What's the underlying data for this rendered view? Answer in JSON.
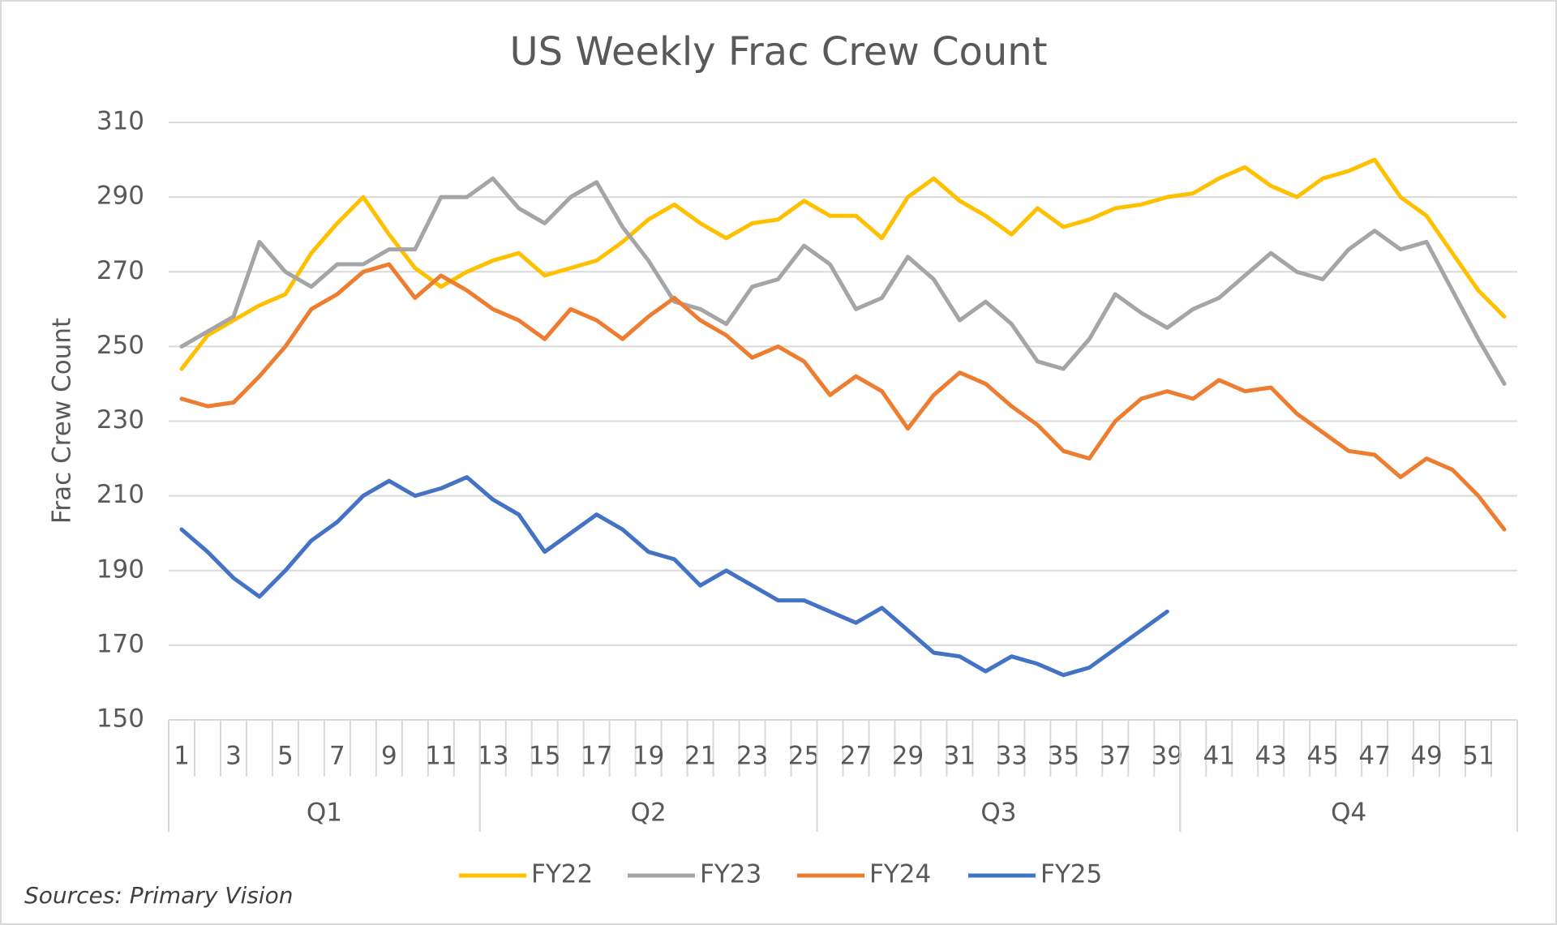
{
  "chart_data": {
    "type": "line",
    "title": "US Weekly Frac Crew Count",
    "y_label": "Frac Crew Count",
    "source": "Sources: Primary Vision",
    "categories": [
      "1",
      null,
      "3",
      null,
      "5",
      null,
      "7",
      null,
      "9",
      null,
      "11",
      null,
      "13",
      null,
      "15",
      null,
      "17",
      null,
      "19",
      null,
      "21",
      null,
      "23",
      null,
      "25",
      null,
      "27",
      null,
      "29",
      null,
      "31",
      null,
      "33",
      null,
      "35",
      null,
      "37",
      null,
      "39",
      null,
      "41",
      null,
      "43",
      null,
      "45",
      null,
      "47",
      null,
      "49",
      null,
      "51",
      null
    ],
    "groups": [
      {
        "name": "Q1",
        "start": 1,
        "end": 12
      },
      {
        "name": "Q2",
        "start": 13,
        "end": 25
      },
      {
        "name": "Q3",
        "start": 26,
        "end": 39
      },
      {
        "name": "Q4",
        "start": 40,
        "end": 52
      }
    ],
    "ylim": [
      150,
      310
    ],
    "yticks": [
      150,
      170,
      190,
      210,
      230,
      250,
      270,
      290,
      310
    ],
    "grid": true,
    "legend": "bottom",
    "series": [
      {
        "name": "FY22",
        "color": "#ffc000",
        "values": [
          244,
          253,
          257,
          261,
          264,
          275,
          283,
          290,
          280,
          271,
          266,
          270,
          273,
          275,
          269,
          271,
          273,
          278,
          284,
          288,
          283,
          279,
          283,
          284,
          289,
          285,
          285,
          279,
          290,
          295,
          289,
          285,
          280,
          287,
          282,
          284,
          287,
          288,
          290,
          291,
          295,
          298,
          293,
          290,
          295,
          297,
          300,
          290,
          285,
          275,
          265,
          258
        ]
      },
      {
        "name": "FY23",
        "color": "#a5a5a5",
        "values": [
          250,
          254,
          258,
          278,
          270,
          266,
          272,
          272,
          276,
          276,
          290,
          290,
          295,
          287,
          283,
          290,
          294,
          282,
          273,
          262,
          260,
          256,
          266,
          268,
          277,
          272,
          260,
          263,
          274,
          268,
          257,
          262,
          256,
          246,
          244,
          252,
          264,
          259,
          255,
          260,
          263,
          269,
          275,
          270,
          268,
          276,
          281,
          276,
          278,
          265,
          252,
          240
        ]
      },
      {
        "name": "FY24",
        "color": "#ed7d31",
        "values": [
          236,
          234,
          235,
          242,
          250,
          260,
          264,
          270,
          272,
          263,
          269,
          265,
          260,
          257,
          252,
          260,
          257,
          252,
          258,
          263,
          257,
          253,
          247,
          250,
          246,
          237,
          242,
          238,
          228,
          237,
          243,
          240,
          234,
          229,
          222,
          220,
          230,
          236,
          238,
          236,
          241,
          238,
          239,
          232,
          227,
          222,
          221,
          215,
          220,
          217,
          210,
          201
        ]
      },
      {
        "name": "FY25",
        "color": "#4472c4",
        "values": [
          201,
          195,
          188,
          183,
          190,
          198,
          203,
          210,
          214,
          210,
          212,
          215,
          209,
          205,
          195,
          200,
          205,
          201,
          195,
          193,
          186,
          190,
          186,
          182,
          182,
          179,
          176,
          180,
          174,
          168,
          167,
          163,
          167,
          165,
          162,
          164,
          169,
          174,
          179,
          null,
          null,
          null,
          null,
          null,
          null,
          null,
          null,
          null,
          null,
          null,
          null,
          null
        ]
      }
    ]
  }
}
